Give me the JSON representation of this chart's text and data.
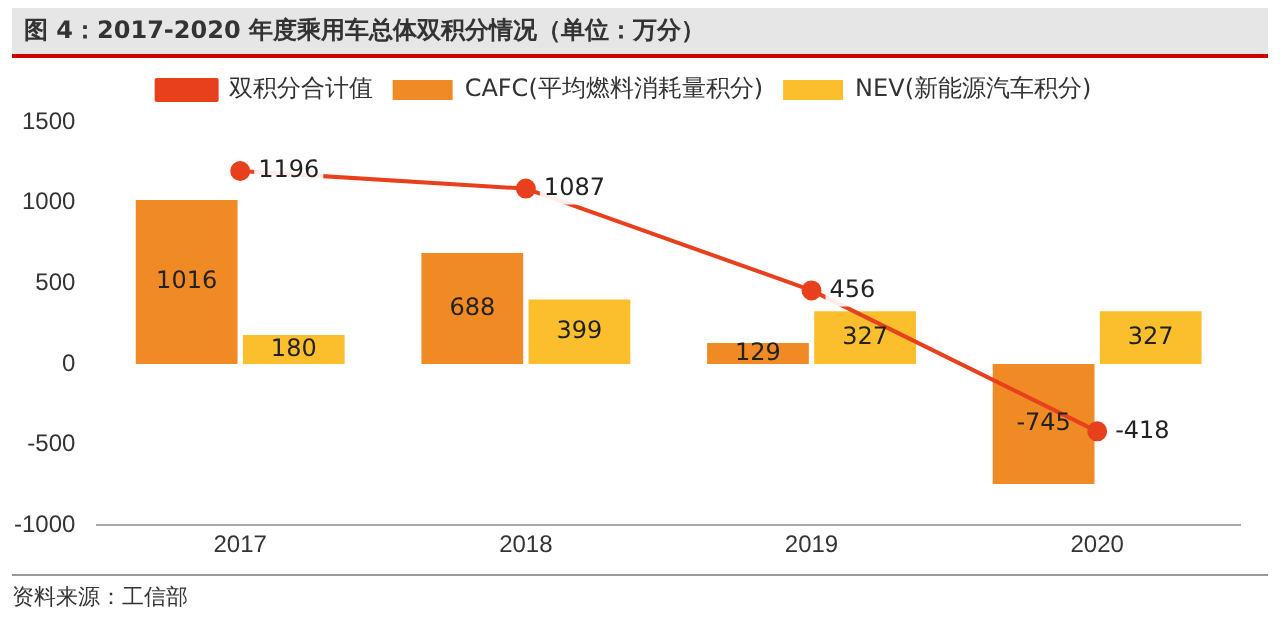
{
  "chart_data": {
    "type": "bar",
    "title": "图 4：2017-2020 年度乘用车总体双积分情况（单位：万分）",
    "categories": [
      "2017",
      "2018",
      "2019",
      "2020"
    ],
    "series": [
      {
        "name": "CAFC(平均燃料消耗量积分)",
        "color": "#f08a24",
        "values": [
          1016,
          688,
          129,
          -745
        ]
      },
      {
        "name": "NEV(新能源汽车积分)",
        "color": "#fbbf2d",
        "values": [
          180,
          399,
          327,
          327
        ]
      },
      {
        "name": "双积分合计值",
        "type": "line",
        "color": "#e8401c",
        "values": [
          1196,
          1087,
          456,
          -418
        ]
      }
    ],
    "ylim": [
      -1000,
      1500
    ],
    "yticks": [
      -1000,
      -500,
      0,
      500,
      1000,
      1500
    ],
    "grid": false,
    "legend": "top",
    "marker": "circle",
    "data_labels": true,
    "annotations": [
      "资料来源：工信部"
    ]
  }
}
